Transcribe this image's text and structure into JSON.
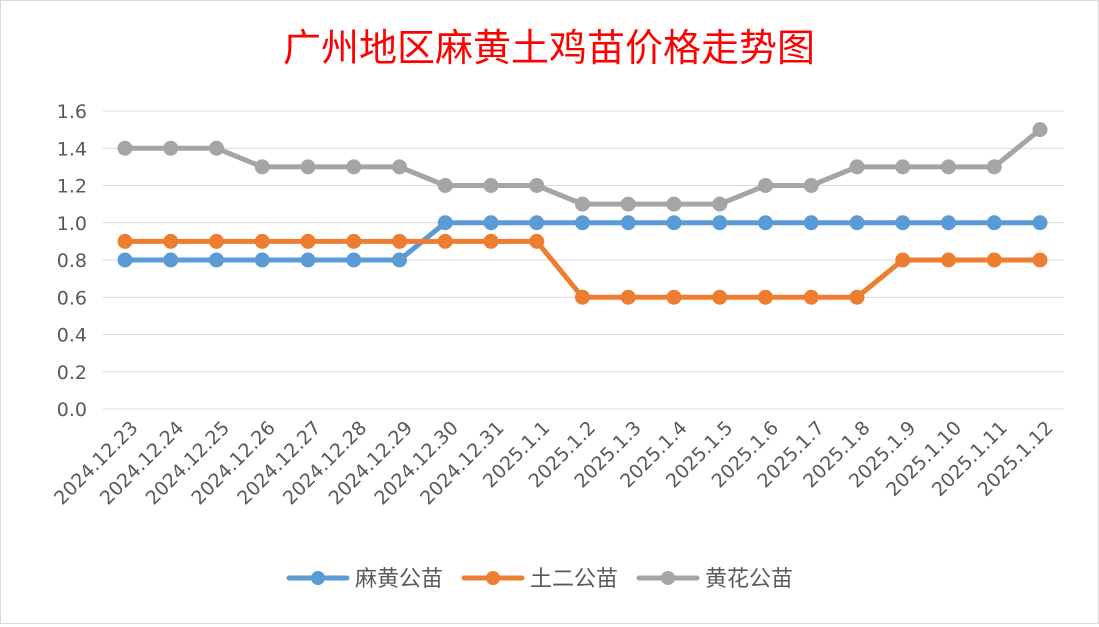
{
  "chart_data": {
    "type": "line",
    "title": "广州地区麻黄土鸡苗价格走势图",
    "categories": [
      "2024.12.23",
      "2024.12.24",
      "2024.12.25",
      "2024.12.26",
      "2024.12.27",
      "2024.12.28",
      "2024.12.29",
      "2024.12.30",
      "2024.12.31",
      "2025.1.1",
      "2025.1.2",
      "2025.1.3",
      "2025.1.4",
      "2025.1.5",
      "2025.1.6",
      "2025.1.7",
      "2025.1.8",
      "2025.1.9",
      "2025.1.10",
      "2025.1.11",
      "2025.1.12"
    ],
    "series": [
      {
        "name": "麻黄公苗",
        "color": "#5b9bd5",
        "values": [
          0.8,
          0.8,
          0.8,
          0.8,
          0.8,
          0.8,
          0.8,
          1.0,
          1.0,
          1.0,
          1.0,
          1.0,
          1.0,
          1.0,
          1.0,
          1.0,
          1.0,
          1.0,
          1.0,
          1.0,
          1.0
        ]
      },
      {
        "name": "土二公苗",
        "color": "#ed7d31",
        "values": [
          0.9,
          0.9,
          0.9,
          0.9,
          0.9,
          0.9,
          0.9,
          0.9,
          0.9,
          0.9,
          0.6,
          0.6,
          0.6,
          0.6,
          0.6,
          0.6,
          0.6,
          0.8,
          0.8,
          0.8,
          0.8
        ]
      },
      {
        "name": "黄花公苗",
        "color": "#a5a5a5",
        "values": [
          1.4,
          1.4,
          1.4,
          1.3,
          1.3,
          1.3,
          1.3,
          1.2,
          1.2,
          1.2,
          1.1,
          1.1,
          1.1,
          1.1,
          1.2,
          1.2,
          1.3,
          1.3,
          1.3,
          1.3,
          1.5
        ]
      }
    ],
    "yticks": [
      "0.0",
      "0.2",
      "0.4",
      "0.6",
      "0.8",
      "1.0",
      "1.2",
      "1.4",
      "1.6"
    ],
    "ylim": [
      0,
      1.6
    ],
    "grid": true,
    "legend": "bottom",
    "title_color": "#ff0000"
  }
}
